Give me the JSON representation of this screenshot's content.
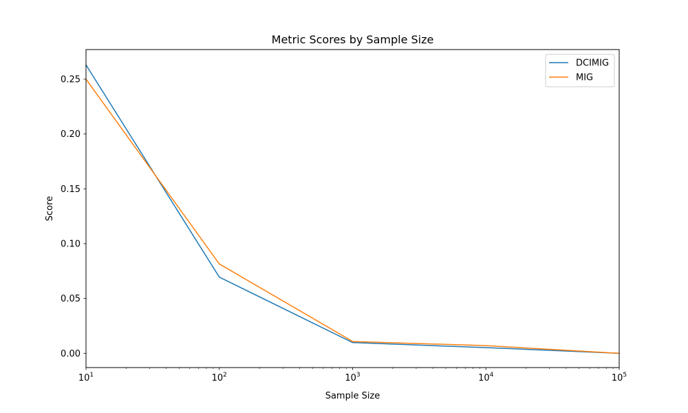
{
  "chart_data": {
    "type": "line",
    "title": "Metric Scores by Sample Size",
    "xlabel": "Sample Size",
    "ylabel": "Score",
    "xscale": "log",
    "xlim": [
      10,
      100000
    ],
    "ylim": [
      -0.013,
      0.277
    ],
    "x": [
      10,
      100,
      1000,
      10000,
      100000
    ],
    "series": [
      {
        "name": "DCIMIG",
        "color": "#1f77b4",
        "values": [
          0.263,
          0.0695,
          0.0098,
          0.0052,
          0.0
        ]
      },
      {
        "name": "MIG",
        "color": "#ff7f0e",
        "values": [
          0.25,
          0.0815,
          0.0108,
          0.007,
          0.0
        ]
      }
    ],
    "yticks": [
      {
        "value": 0.0,
        "label": "0.00"
      },
      {
        "value": 0.05,
        "label": "0.05"
      },
      {
        "value": 0.1,
        "label": "0.10"
      },
      {
        "value": 0.15,
        "label": "0.15"
      },
      {
        "value": 0.2,
        "label": "0.20"
      },
      {
        "value": 0.25,
        "label": "0.25"
      }
    ],
    "xticks": [
      {
        "value": 10,
        "base": "10",
        "exp": "1"
      },
      {
        "value": 100,
        "base": "10",
        "exp": "2"
      },
      {
        "value": 1000,
        "base": "10",
        "exp": "3"
      },
      {
        "value": 10000,
        "base": "10",
        "exp": "4"
      },
      {
        "value": 100000,
        "base": "10",
        "exp": "5"
      }
    ],
    "legend": "top-right",
    "grid": false
  }
}
